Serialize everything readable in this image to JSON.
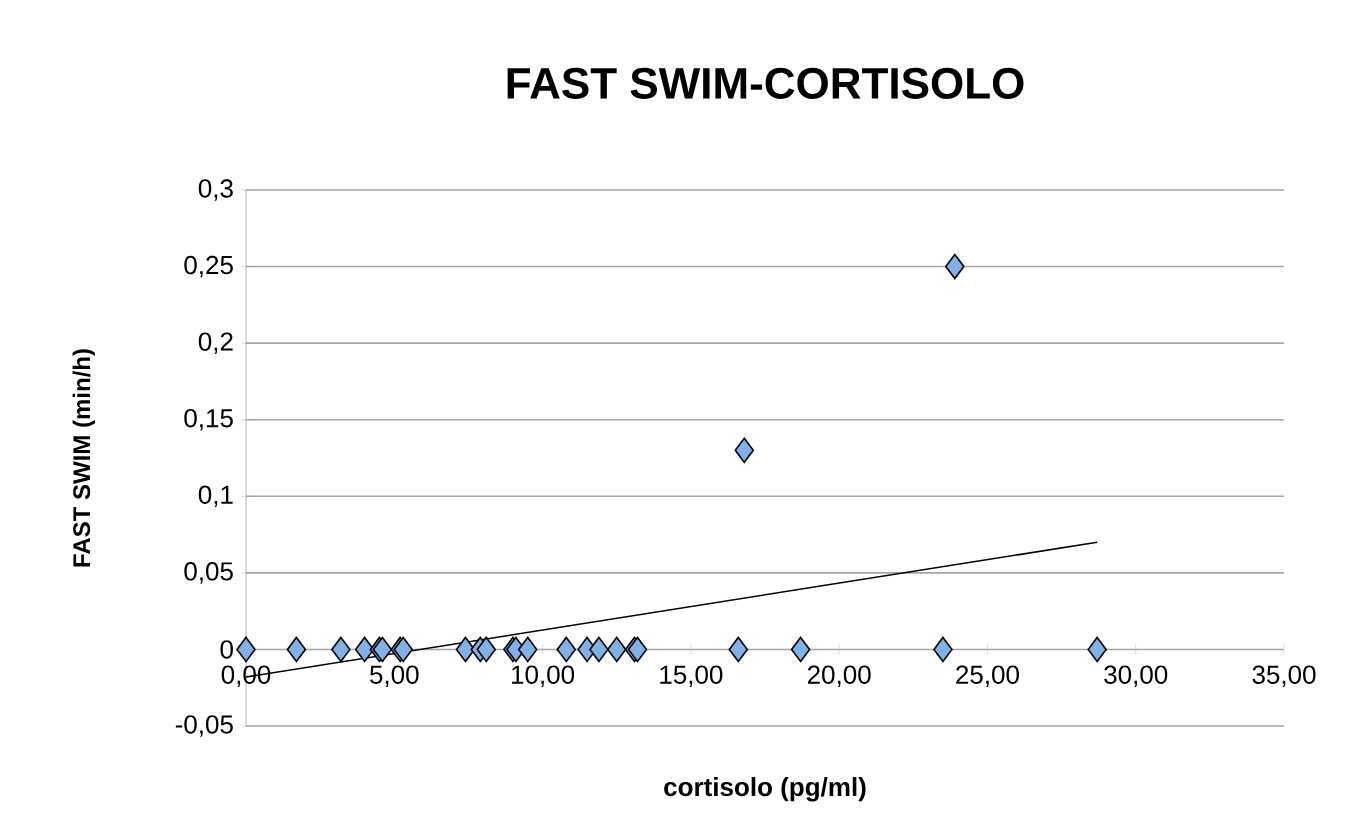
{
  "chart_data": {
    "type": "scatter",
    "title": "FAST SWIM-CORTISOLO",
    "xlabel": "cortisolo (pg/ml)",
    "ylabel": "FAST SWIM  (min/h)",
    "xlim": [
      0,
      35
    ],
    "xticks": [
      {
        "value": 0,
        "label": "0,00"
      },
      {
        "value": 5,
        "label": "5,00"
      },
      {
        "value": 10,
        "label": "10,00"
      },
      {
        "value": 15,
        "label": "15,00"
      },
      {
        "value": 20,
        "label": "20,00"
      },
      {
        "value": 25,
        "label": "25,00"
      },
      {
        "value": 30,
        "label": "30,00"
      },
      {
        "value": 35,
        "label": "35,00"
      }
    ],
    "ylim": [
      -0.05,
      0.3
    ],
    "yticks": [
      {
        "value": -0.05,
        "label": "-0,05"
      },
      {
        "value": 0,
        "label": "0"
      },
      {
        "value": 0.05,
        "label": "0,05"
      },
      {
        "value": 0.1,
        "label": "0,1"
      },
      {
        "value": 0.15,
        "label": "0,15"
      },
      {
        "value": 0.2,
        "label": "0,2"
      },
      {
        "value": 0.25,
        "label": "0,25"
      },
      {
        "value": 0.3,
        "label": "0,3"
      }
    ],
    "grid": "y",
    "marker": "diamond",
    "series": [
      {
        "color": "#80b1e8",
        "x": [
          0,
          1.7,
          3.2,
          4.0,
          4.5,
          4.6,
          5.2,
          5.3,
          7.4,
          7.9,
          8.1,
          9.0,
          9.1,
          9.5,
          10.8,
          11.5,
          11.9,
          12.5,
          13.1,
          13.2,
          16.6,
          16.8,
          18.7,
          23.5,
          23.9,
          28.7
        ],
        "values": [
          0,
          0,
          0,
          0,
          0,
          0,
          0,
          0,
          0,
          0,
          0,
          0,
          0,
          0,
          0,
          0,
          0,
          0,
          0,
          0,
          0,
          0.13,
          0,
          0,
          0.25,
          0
        ]
      },
      {
        "type": "line",
        "color": "#000000",
        "marker": "none",
        "x": [
          0,
          28.7
        ],
        "values": [
          -0.018,
          0.07
        ]
      }
    ]
  }
}
